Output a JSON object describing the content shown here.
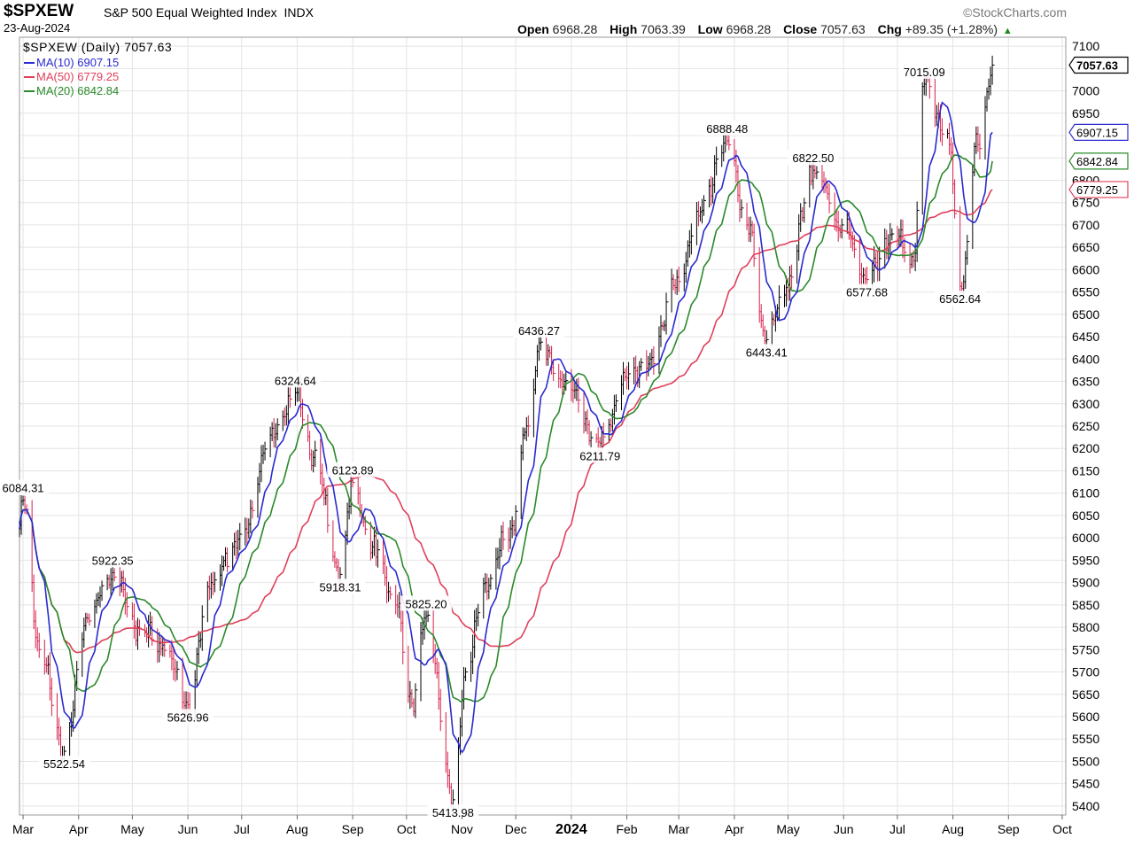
{
  "header": {
    "symbol": "$SPXEW",
    "name": "S&P 500 Equal Weighted Index",
    "exchange": "INDX",
    "date": "23-Aug-2024",
    "logo": "©StockCharts.com",
    "open_label": "Open",
    "open": "6968.28",
    "high_label": "High",
    "high": "7063.39",
    "low_label": "Low",
    "low": "6968.28",
    "close_label": "Close",
    "close": "7057.63",
    "chg_label": "Chg",
    "chg": "+89.35 (+1.28%)",
    "chg_arrow": "▲"
  },
  "legend": {
    "price": "$SPXEW (Daily) 7057.63",
    "ma10": "MA(10) 6907.15",
    "ma50": "MA(50) 6779.25",
    "ma20": "MA(20) 6842.84"
  },
  "colors": {
    "up": "#000000",
    "down": "#d6204a",
    "ma10": "#2a2ad0",
    "ma50": "#e0405a",
    "ma20": "#2a8a2a",
    "grid": "#e4e4e4"
  },
  "chart_data": {
    "type": "line",
    "title": "$SPXEW S&P 500 Equal Weighted Index INDX",
    "x_ticks": [
      "Mar",
      "Apr",
      "May",
      "Jun",
      "Jul",
      "Aug",
      "Sep",
      "Oct",
      "Nov",
      "Dec",
      "2024",
      "Feb",
      "Mar",
      "Apr",
      "May",
      "Jun",
      "Jul",
      "Aug",
      "Sep",
      "Oct"
    ],
    "ylim": [
      5380,
      7120
    ],
    "y_ticks": [
      5400,
      5450,
      5500,
      5550,
      5600,
      5650,
      5700,
      5750,
      5800,
      5850,
      5900,
      5950,
      6000,
      6050,
      6100,
      6150,
      6200,
      6250,
      6300,
      6350,
      6400,
      6450,
      6500,
      6550,
      6600,
      6650,
      6700,
      6750,
      6800,
      6850,
      6900,
      6950,
      7000,
      7050,
      7100
    ],
    "grid": true,
    "axis_labels": [
      {
        "text": "7057.63",
        "value": 7057.63,
        "series": "price"
      },
      {
        "text": "6907.15",
        "value": 6907.15,
        "series": "ma10"
      },
      {
        "text": "6842.84",
        "value": 6842.84,
        "series": "ma20"
      },
      {
        "text": "6779.25",
        "value": 6779.25,
        "series": "ma50"
      }
    ],
    "annotations": [
      {
        "text": "6084.31",
        "value": 6084.31,
        "date": "2023-03-01",
        "pos": "above"
      },
      {
        "text": "5522.54",
        "value": 5522.54,
        "date": "2023-03-24",
        "pos": "below"
      },
      {
        "text": "5922.35",
        "value": 5922.35,
        "date": "2023-04-20",
        "pos": "above"
      },
      {
        "text": "5626.96",
        "value": 5626.96,
        "date": "2023-06-01",
        "pos": "below"
      },
      {
        "text": "6324.64",
        "value": 6324.64,
        "date": "2023-07-31",
        "pos": "above"
      },
      {
        "text": "6123.89",
        "value": 6123.89,
        "date": "2023-09-01",
        "pos": "above"
      },
      {
        "text": "5918.31",
        "value": 5918.31,
        "date": "2023-08-25",
        "pos": "below"
      },
      {
        "text": "5825.20",
        "value": 5825.2,
        "date": "2023-10-12",
        "pos": "above"
      },
      {
        "text": "5413.98",
        "value": 5413.98,
        "date": "2023-10-27",
        "pos": "below"
      },
      {
        "text": "6436.27",
        "value": 6436.27,
        "date": "2023-12-14",
        "pos": "above"
      },
      {
        "text": "6211.79",
        "value": 6211.79,
        "date": "2024-01-17",
        "pos": "below"
      },
      {
        "text": "6888.48",
        "value": 6888.48,
        "date": "2024-03-28",
        "pos": "above"
      },
      {
        "text": "6443.41",
        "value": 6443.41,
        "date": "2024-04-19",
        "pos": "below"
      },
      {
        "text": "6822.50",
        "value": 6822.5,
        "date": "2024-05-15",
        "pos": "above"
      },
      {
        "text": "6577.68",
        "value": 6577.68,
        "date": "2024-06-14",
        "pos": "below"
      },
      {
        "text": "7015.09",
        "value": 7015.09,
        "date": "2024-07-16",
        "pos": "above"
      },
      {
        "text": "6562.64",
        "value": 6562.64,
        "date": "2024-08-05",
        "pos": "below"
      }
    ],
    "price_anchors": [
      [
        "2023-02-27",
        6020
      ],
      [
        "2023-03-01",
        6084.31
      ],
      [
        "2023-03-10",
        5750
      ],
      [
        "2023-03-24",
        5522.54
      ],
      [
        "2023-04-06",
        5820
      ],
      [
        "2023-04-20",
        5922.35
      ],
      [
        "2023-05-04",
        5800
      ],
      [
        "2023-05-18",
        5760
      ],
      [
        "2023-06-01",
        5626.96
      ],
      [
        "2023-06-14",
        5900
      ],
      [
        "2023-07-03",
        6020
      ],
      [
        "2023-07-17",
        6230
      ],
      [
        "2023-07-31",
        6324.64
      ],
      [
        "2023-08-10",
        6180
      ],
      [
        "2023-08-25",
        5918.31
      ],
      [
        "2023-09-01",
        6123.89
      ],
      [
        "2023-09-12",
        5980
      ],
      [
        "2023-09-25",
        5850
      ],
      [
        "2023-10-04",
        5630
      ],
      [
        "2023-10-12",
        5825.2
      ],
      [
        "2023-10-27",
        5413.98
      ],
      [
        "2023-11-03",
        5700
      ],
      [
        "2023-11-14",
        5900
      ],
      [
        "2023-11-28",
        6020
      ],
      [
        "2023-12-08",
        6250
      ],
      [
        "2023-12-14",
        6436.27
      ],
      [
        "2023-12-28",
        6350
      ],
      [
        "2024-01-17",
        6211.79
      ],
      [
        "2024-01-31",
        6360
      ],
      [
        "2024-02-14",
        6400
      ],
      [
        "2024-02-28",
        6560
      ],
      [
        "2024-03-12",
        6720
      ],
      [
        "2024-03-28",
        6888.48
      ],
      [
        "2024-04-08",
        6700
      ],
      [
        "2024-04-19",
        6443.41
      ],
      [
        "2024-04-30",
        6560
      ],
      [
        "2024-05-15",
        6822.5
      ],
      [
        "2024-05-31",
        6700
      ],
      [
        "2024-06-14",
        6577.68
      ],
      [
        "2024-06-28",
        6680
      ],
      [
        "2024-07-10",
        6620
      ],
      [
        "2024-07-16",
        7015.09
      ],
      [
        "2024-07-30",
        6880
      ],
      [
        "2024-08-05",
        6562.64
      ],
      [
        "2024-08-15",
        6880
      ],
      [
        "2024-08-23",
        7057.63
      ]
    ],
    "series": [
      {
        "name": "$SPXEW (Daily)",
        "last": 7057.63
      },
      {
        "name": "MA(10)",
        "period": 10,
        "last": 6907.15
      },
      {
        "name": "MA(50)",
        "period": 50,
        "last": 6779.25
      },
      {
        "name": "MA(20)",
        "period": 20,
        "last": 6842.84
      }
    ]
  }
}
